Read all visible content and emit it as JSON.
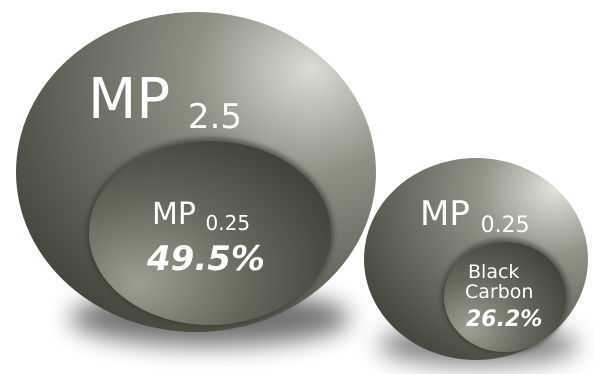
{
  "diagram": {
    "big_circle": {
      "label_main": "MP",
      "label_sub": "2.5",
      "inner": {
        "label_main": "MP",
        "label_sub": "0.25",
        "percent": "49.5%"
      }
    },
    "small_circle": {
      "label_main": "MP",
      "label_sub": "0.25",
      "inner": {
        "label_line1": "Black",
        "label_line2": "Carbon",
        "percent": "26.2%"
      }
    },
    "colors": {
      "outer_light": "#d6d6cd",
      "outer_mid": "#7a7a70",
      "outer_dark": "#45453c",
      "inner_light": "#a4a496",
      "inner_dark": "#3f3f37",
      "shadow": "#000000"
    }
  }
}
